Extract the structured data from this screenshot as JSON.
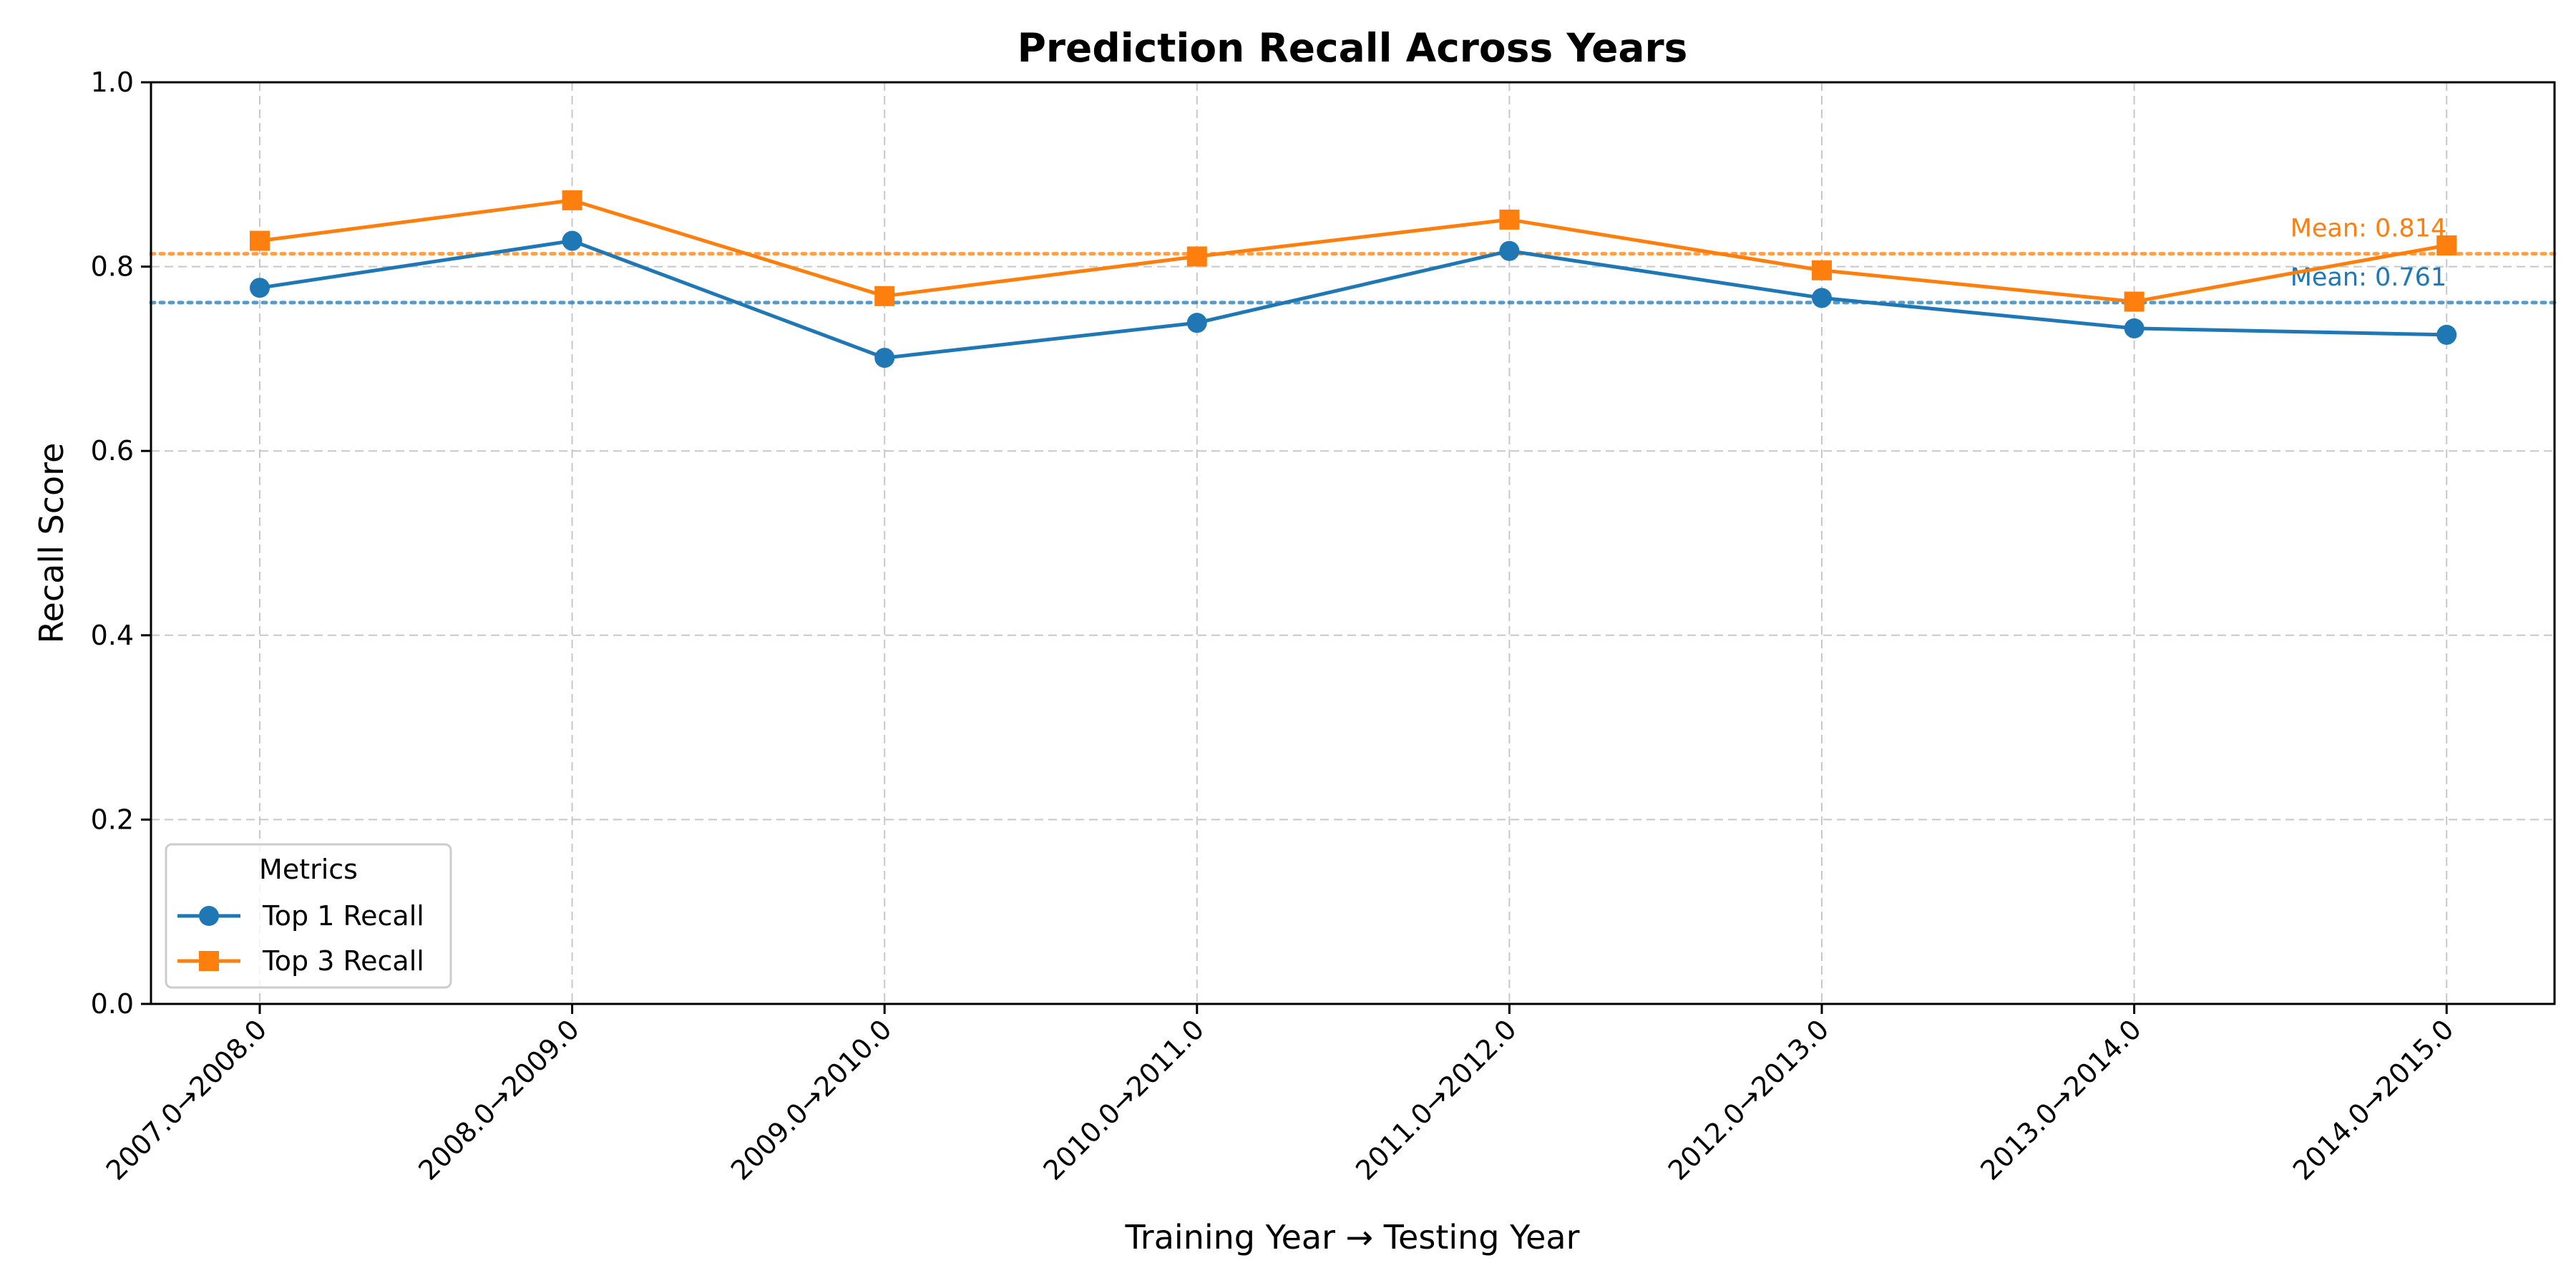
{
  "chart_data": {
    "type": "line",
    "title": "Prediction Recall Across Years",
    "xlabel": "Training Year → Testing Year",
    "ylabel": "Recall Score",
    "ylim": [
      0,
      1
    ],
    "yticks": [
      "0.0",
      "0.2",
      "0.4",
      "0.6",
      "0.8",
      "1.0"
    ],
    "grid": true,
    "categories": [
      "2007.0→2008.0",
      "2008.0→2009.0",
      "2009.0→2010.0",
      "2010.0→2011.0",
      "2011.0→2012.0",
      "2012.0→2013.0",
      "2013.0→2014.0",
      "2014.0→2015.0"
    ],
    "series": [
      {
        "name": "Top 1 Recall",
        "color": "#1f77b4",
        "marker": "circle",
        "values": [
          0.777,
          0.828,
          0.701,
          0.739,
          0.817,
          0.766,
          0.733,
          0.726
        ],
        "mean": 0.761,
        "mean_label": "Mean: 0.761"
      },
      {
        "name": "Top 3 Recall",
        "color": "#ff7f0e",
        "marker": "square",
        "values": [
          0.828,
          0.872,
          0.768,
          0.811,
          0.851,
          0.796,
          0.762,
          0.823
        ],
        "mean": 0.814,
        "mean_label": "Mean: 0.814"
      }
    ],
    "legend": {
      "title": "Metrics",
      "position": "lower-left"
    }
  }
}
